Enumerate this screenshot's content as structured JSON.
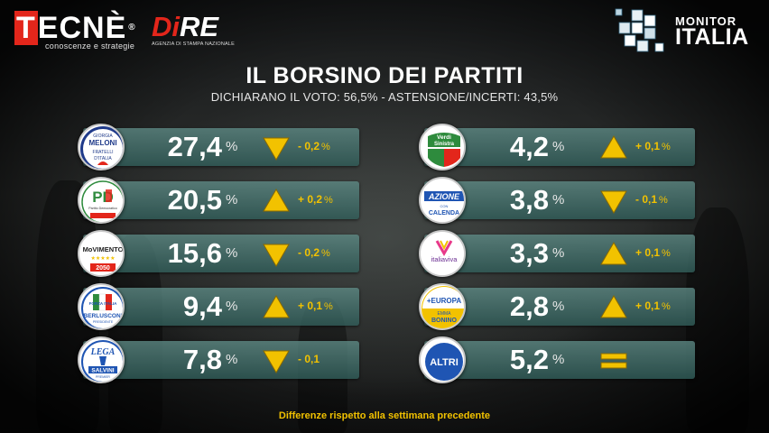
{
  "header": {
    "tecne_name_first": "T",
    "tecne_name_rest": "ECNÈ",
    "tecne_reg": "®",
    "tecne_tagline": "conoscenze e strategie",
    "dire_name_a": "D",
    "dire_name_b": "i",
    "dire_name_c": "RE",
    "dire_tagline": "AGENZIA DI STAMPA NAZIONALE",
    "monitor_line1": "MONITOR",
    "monitor_line2": "ITALIA"
  },
  "title": "IL BORSINO DEI PARTITI",
  "subtitle": "DICHIARANO IL VOTO: 56,5% - ASTENSIONE/INCERTI: 43,5%",
  "footnote": "Differenze rispetto alla settimana precedente",
  "colors": {
    "up_arrow": "#f2c200",
    "down_arrow": "#f2c200",
    "bar": "#4f8a84",
    "accent_red": "#e3261b",
    "delta_text": "#f2c200"
  },
  "badge_texts": {
    "fdi_1": "GIORGIA",
    "fdi_2": "MELONI",
    "fdi_3": "FRATELLI",
    "fdi_4": "D'ITALIA",
    "pd_1": "PD",
    "pd_2": "Partito Democratico",
    "m5s_1": "MoVIMENTO",
    "m5s_2": "2050",
    "fi_1": "FORZA ITALIA",
    "fi_2": "BERLUSCONI",
    "fi_3": "PRESIDENTE",
    "lega_1": "LEGA",
    "lega_2": "SALVINI",
    "lega_3": "PREMIER",
    "avs_1": "Verdi",
    "avs_2": "Sinistra",
    "az_1": "AZIONE",
    "az_2": "CON",
    "az_3": "CALENDA",
    "iv_1": "italiaviva",
    "eu_1": "+EUROPA",
    "eu_2": "EMMA",
    "eu_3": "BONINO",
    "altri_1": "ALTRI"
  },
  "chart_data": {
    "type": "table",
    "title": "IL BORSINO DEI PARTITI",
    "subtitle": "DICHIARANO IL VOTO: 56,5% - ASTENSIONE/INCERTI: 43,5%",
    "unit": "%",
    "note": "Differenze rispetto alla settimana precedente",
    "left_column": [
      {
        "party": "Fratelli d'Italia",
        "badge": "fdi",
        "value": "27,4",
        "trend": "down",
        "delta": "- 0,2",
        "delta_unit": "%"
      },
      {
        "party": "Partito Democratico",
        "badge": "pd",
        "value": "20,5",
        "trend": "up",
        "delta": "+ 0,2",
        "delta_unit": "%"
      },
      {
        "party": "MoVimento 5 Stelle",
        "badge": "m5s",
        "value": "15,6",
        "trend": "down",
        "delta": "- 0,2",
        "delta_unit": "%"
      },
      {
        "party": "Forza Italia",
        "badge": "fi",
        "value": "9,4",
        "trend": "up",
        "delta": "+ 0,1",
        "delta_unit": "%"
      },
      {
        "party": "Lega",
        "badge": "lega",
        "value": "7,8",
        "trend": "down",
        "delta": "- 0,1",
        "delta_unit": ""
      }
    ],
    "right_column": [
      {
        "party": "Alleanza Verdi e Sinistra",
        "badge": "avs",
        "value": "4,2",
        "trend": "up",
        "delta": "+ 0,1",
        "delta_unit": "%"
      },
      {
        "party": "Azione",
        "badge": "azione",
        "value": "3,8",
        "trend": "down",
        "delta": "- 0,1",
        "delta_unit": "%"
      },
      {
        "party": "Italia Viva",
        "badge": "iv",
        "value": "3,3",
        "trend": "up",
        "delta": "+ 0,1",
        "delta_unit": "%"
      },
      {
        "party": "+Europa",
        "badge": "europa",
        "value": "2,8",
        "trend": "up",
        "delta": "+ 0,1",
        "delta_unit": "%"
      },
      {
        "party": "Altri",
        "badge": "altri",
        "value": "5,2",
        "trend": "equal",
        "delta": "",
        "delta_unit": ""
      }
    ]
  }
}
